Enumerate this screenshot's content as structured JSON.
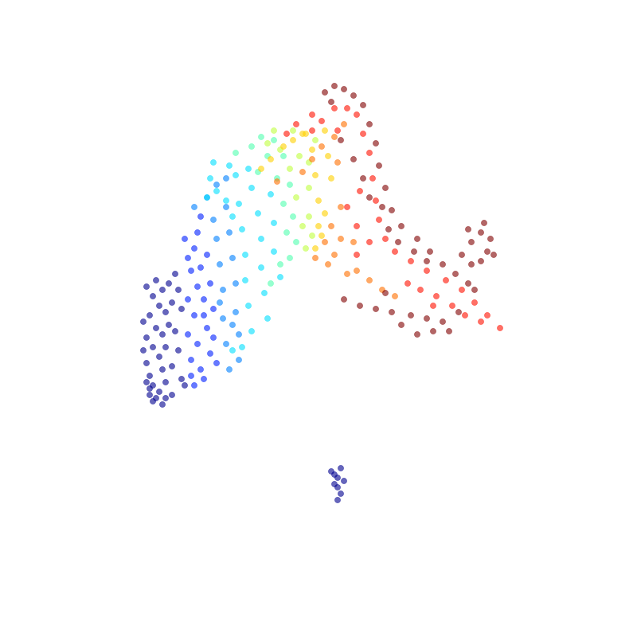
{
  "chart_data": {
    "type": "scatter",
    "title": "",
    "xlabel": "",
    "ylabel": "",
    "axes_visible": false,
    "grid": false,
    "legend": "none",
    "colormap": "jet",
    "point_alpha": 0.6,
    "note": "",
    "xlim": [
      0,
      10
    ],
    "ylim": [
      0,
      10
    ],
    "series": [
      {
        "label": "",
        "color": "#00008f",
        "points": [
          [
            2.3,
            5.5
          ],
          [
            2.4,
            5.35
          ],
          [
            2.45,
            5.6
          ],
          [
            2.55,
            5.45
          ],
          [
            2.5,
            5.2
          ],
          [
            2.35,
            5.05
          ],
          [
            2.6,
            5.1
          ],
          [
            2.45,
            4.85
          ],
          [
            2.3,
            4.7
          ],
          [
            2.55,
            4.75
          ],
          [
            2.4,
            4.55
          ],
          [
            2.3,
            4.3
          ],
          [
            2.5,
            4.4
          ],
          [
            2.6,
            4.55
          ],
          [
            2.35,
            4.1
          ],
          [
            2.55,
            4.2
          ],
          [
            2.4,
            3.95
          ],
          [
            2.6,
            4.0
          ],
          [
            2.35,
            3.8
          ],
          [
            2.5,
            3.85
          ],
          [
            2.4,
            3.7
          ],
          [
            2.55,
            3.65
          ],
          [
            2.35,
            3.9
          ],
          [
            2.65,
            4.9
          ],
          [
            2.7,
            5.25
          ],
          [
            2.65,
            5.55
          ],
          [
            2.75,
            5.7
          ],
          [
            2.8,
            5.45
          ],
          [
            2.85,
            5.15
          ],
          [
            2.75,
            4.8
          ],
          [
            2.8,
            4.5
          ],
          [
            2.7,
            4.25
          ],
          [
            2.85,
            4.05
          ],
          [
            2.7,
            3.8
          ],
          [
            2.9,
            3.95
          ],
          [
            2.25,
            4.95
          ],
          [
            2.25,
            4.5
          ],
          [
            2.3,
            4.0
          ],
          [
            2.45,
            3.75
          ],
          [
            2.6,
            3.75
          ],
          [
            5.2,
            2.6
          ],
          [
            5.25,
            2.55
          ],
          [
            5.35,
            2.65
          ],
          [
            5.3,
            2.5
          ],
          [
            5.4,
            2.45
          ],
          [
            5.3,
            2.35
          ],
          [
            5.35,
            2.25
          ],
          [
            5.3,
            2.15
          ],
          [
            5.25,
            2.4
          ]
        ]
      },
      {
        "label": "",
        "color": "#0020ff",
        "points": [
          [
            2.95,
            5.95
          ],
          [
            3.05,
            6.1
          ],
          [
            3.0,
            5.75
          ],
          [
            3.1,
            5.5
          ],
          [
            2.95,
            5.3
          ],
          [
            3.05,
            5.05
          ],
          [
            2.95,
            4.75
          ],
          [
            3.1,
            4.6
          ],
          [
            3.0,
            4.35
          ],
          [
            3.15,
            4.2
          ],
          [
            3.05,
            3.95
          ],
          [
            3.2,
            4.05
          ],
          [
            3.15,
            5.8
          ],
          [
            3.2,
            5.3
          ],
          [
            3.25,
            4.85
          ],
          [
            3.3,
            4.45
          ],
          [
            2.9,
            6.25
          ],
          [
            3.1,
            6.35
          ],
          [
            3.2,
            5.05
          ],
          [
            3.0,
            4.1
          ],
          [
            3.15,
            6.6
          ],
          [
            3.25,
            6.0
          ],
          [
            3.3,
            5.55
          ],
          [
            3.35,
            5.15
          ],
          [
            3.35,
            4.7
          ],
          [
            3.4,
            4.3
          ]
        ]
      },
      {
        "label": "",
        "color": "#0080ff",
        "points": [
          [
            3.05,
            6.75
          ],
          [
            3.25,
            6.9
          ],
          [
            3.35,
            6.55
          ],
          [
            3.4,
            6.25
          ],
          [
            3.45,
            5.85
          ],
          [
            3.5,
            5.45
          ],
          [
            3.5,
            5.0
          ],
          [
            3.55,
            4.6
          ],
          [
            3.6,
            4.2
          ],
          [
            3.4,
            7.1
          ],
          [
            3.55,
            6.75
          ],
          [
            3.6,
            6.35
          ],
          [
            3.65,
            5.95
          ],
          [
            3.7,
            5.55
          ],
          [
            3.7,
            5.1
          ],
          [
            3.75,
            4.75
          ],
          [
            3.75,
            4.35
          ],
          [
            3.55,
            7.2
          ],
          [
            3.65,
            4.9
          ],
          [
            3.45,
            5.25
          ]
        ]
      },
      {
        "label": "",
        "color": "#00e0ff",
        "points": [
          [
            3.25,
            6.9
          ],
          [
            3.3,
            7.2
          ],
          [
            3.4,
            7.0
          ],
          [
            3.55,
            6.85
          ],
          [
            3.65,
            6.6
          ],
          [
            3.75,
            6.8
          ],
          [
            3.8,
            6.4
          ],
          [
            3.85,
            6.0
          ],
          [
            3.85,
            5.6
          ],
          [
            3.9,
            5.2
          ],
          [
            3.95,
            4.8
          ],
          [
            3.95,
            7.05
          ],
          [
            4.05,
            6.65
          ],
          [
            4.1,
            6.25
          ],
          [
            4.1,
            5.8
          ],
          [
            4.15,
            5.4
          ],
          [
            4.2,
            5.0
          ],
          [
            3.7,
            7.25
          ],
          [
            3.35,
            7.45
          ],
          [
            3.6,
            7.4
          ],
          [
            3.9,
            7.35
          ],
          [
            4.25,
            6.95
          ],
          [
            4.3,
            6.5
          ],
          [
            4.3,
            6.05
          ],
          [
            4.4,
            5.65
          ],
          [
            3.8,
            4.55
          ],
          [
            3.65,
            4.5
          ]
        ]
      },
      {
        "label": "",
        "color": "#50ffaf",
        "points": [
          [
            3.7,
            7.6
          ],
          [
            3.95,
            7.7
          ],
          [
            4.05,
            7.3
          ],
          [
            4.2,
            7.55
          ],
          [
            4.35,
            7.2
          ],
          [
            4.45,
            6.8
          ],
          [
            4.5,
            6.35
          ],
          [
            4.55,
            5.95
          ],
          [
            4.1,
            7.85
          ],
          [
            4.3,
            7.8
          ],
          [
            4.45,
            7.55
          ],
          [
            4.55,
            7.1
          ],
          [
            4.6,
            6.6
          ],
          [
            4.65,
            6.2
          ],
          [
            4.4,
            5.85
          ],
          [
            4.25,
            5.55
          ]
        ]
      },
      {
        "label": "",
        "color": "#c0ff40",
        "points": [
          [
            4.2,
            7.75
          ],
          [
            4.4,
            7.65
          ],
          [
            4.55,
            7.35
          ],
          [
            4.65,
            6.9
          ],
          [
            4.75,
            6.45
          ],
          [
            4.8,
            6.1
          ],
          [
            4.85,
            6.6
          ],
          [
            4.85,
            7.05
          ],
          [
            4.7,
            7.55
          ],
          [
            4.85,
            7.45
          ],
          [
            4.95,
            7.8
          ],
          [
            4.6,
            7.95
          ],
          [
            4.3,
            7.95
          ],
          [
            4.9,
            6.3
          ]
        ]
      },
      {
        "label": "",
        "color": "#ffd000",
        "points": [
          [
            4.1,
            7.35
          ],
          [
            4.25,
            7.5
          ],
          [
            4.45,
            7.7
          ],
          [
            4.6,
            7.8
          ],
          [
            4.75,
            7.9
          ],
          [
            4.9,
            7.65
          ],
          [
            4.95,
            7.25
          ],
          [
            5.0,
            6.85
          ],
          [
            5.0,
            6.45
          ],
          [
            4.95,
            6.1
          ],
          [
            5.1,
            7.95
          ],
          [
            5.15,
            7.55
          ],
          [
            5.2,
            7.2
          ],
          [
            5.1,
            6.65
          ],
          [
            5.05,
            6.3
          ],
          [
            4.8,
            7.9
          ]
        ]
      },
      {
        "label": "",
        "color": "#ff7000",
        "points": [
          [
            4.35,
            7.15
          ],
          [
            4.75,
            7.3
          ],
          [
            5.05,
            7.7
          ],
          [
            5.25,
            7.85
          ],
          [
            5.2,
            6.45
          ],
          [
            5.35,
            6.75
          ],
          [
            5.1,
            6.2
          ],
          [
            5.35,
            6.25
          ],
          [
            4.95,
            5.95
          ],
          [
            5.15,
            5.85
          ],
          [
            5.45,
            5.7
          ],
          [
            5.8,
            5.6
          ],
          [
            6.0,
            5.45
          ],
          [
            6.2,
            5.35
          ],
          [
            5.6,
            5.75
          ],
          [
            5.25,
            6.0
          ],
          [
            5.55,
            6.2
          ],
          [
            5.4,
            8.05
          ],
          [
            5.3,
            7.45
          ],
          [
            4.9,
            7.5
          ]
        ]
      },
      {
        "label": "",
        "color": "#ff1000",
        "points": [
          [
            4.5,
            7.9
          ],
          [
            4.65,
            8.05
          ],
          [
            4.9,
            8.2
          ],
          [
            5.05,
            8.1
          ],
          [
            5.25,
            8.3
          ],
          [
            5.45,
            8.3
          ],
          [
            5.6,
            8.2
          ],
          [
            5.7,
            7.9
          ],
          [
            5.8,
            7.6
          ],
          [
            5.85,
            7.2
          ],
          [
            5.9,
            6.85
          ],
          [
            5.95,
            6.55
          ],
          [
            6.05,
            6.25
          ],
          [
            6.2,
            6.05
          ],
          [
            6.45,
            5.9
          ],
          [
            6.7,
            5.75
          ],
          [
            7.0,
            5.6
          ],
          [
            7.25,
            5.45
          ],
          [
            7.45,
            5.25
          ],
          [
            7.65,
            5.05
          ],
          [
            7.85,
            4.85
          ],
          [
            6.4,
            5.55
          ],
          [
            6.6,
            5.45
          ],
          [
            6.85,
            5.35
          ],
          [
            7.1,
            5.2
          ],
          [
            7.3,
            5.05
          ],
          [
            5.45,
            6.75
          ],
          [
            5.6,
            6.45
          ],
          [
            5.8,
            6.2
          ],
          [
            5.65,
            7.0
          ],
          [
            5.3,
            7.95
          ],
          [
            4.9,
            7.95
          ],
          [
            5.6,
            6.0
          ],
          [
            6.8,
            5.2
          ],
          [
            7.55,
            4.95
          ]
        ]
      },
      {
        "label": "",
        "color": "#800000",
        "points": [
          [
            5.1,
            8.55
          ],
          [
            5.25,
            8.65
          ],
          [
            5.4,
            8.6
          ],
          [
            5.55,
            8.5
          ],
          [
            5.7,
            8.35
          ],
          [
            5.8,
            8.05
          ],
          [
            5.9,
            7.75
          ],
          [
            5.95,
            7.4
          ],
          [
            6.05,
            7.05
          ],
          [
            6.15,
            6.7
          ],
          [
            6.3,
            6.45
          ],
          [
            6.55,
            6.25
          ],
          [
            6.75,
            6.05
          ],
          [
            6.95,
            5.85
          ],
          [
            7.15,
            5.7
          ],
          [
            7.35,
            5.55
          ],
          [
            7.45,
            5.45
          ],
          [
            7.2,
            5.1
          ],
          [
            6.95,
            4.95
          ],
          [
            6.7,
            5.0
          ],
          [
            6.45,
            5.05
          ],
          [
            6.15,
            5.1
          ],
          [
            5.9,
            5.15
          ],
          [
            5.65,
            5.2
          ],
          [
            5.4,
            5.3
          ],
          [
            6.05,
            5.4
          ],
          [
            6.3,
            4.9
          ],
          [
            6.55,
            4.75
          ],
          [
            6.8,
            4.8
          ],
          [
            7.05,
            4.8
          ],
          [
            6.7,
            5.9
          ],
          [
            6.5,
            6.05
          ],
          [
            6.25,
            6.2
          ],
          [
            6.1,
            6.4
          ],
          [
            6.0,
            6.75
          ],
          [
            5.8,
            6.9
          ],
          [
            5.7,
            7.2
          ],
          [
            5.55,
            7.5
          ],
          [
            5.35,
            7.8
          ],
          [
            5.2,
            8.4
          ],
          [
            7.4,
            6.2
          ],
          [
            7.55,
            6.35
          ],
          [
            7.7,
            6.25
          ],
          [
            7.65,
            6.05
          ],
          [
            7.75,
            6.0
          ],
          [
            7.55,
            5.9
          ],
          [
            7.4,
            5.85
          ],
          [
            7.25,
            6.0
          ],
          [
            7.35,
            6.4
          ],
          [
            7.6,
            6.5
          ]
        ]
      }
    ]
  }
}
